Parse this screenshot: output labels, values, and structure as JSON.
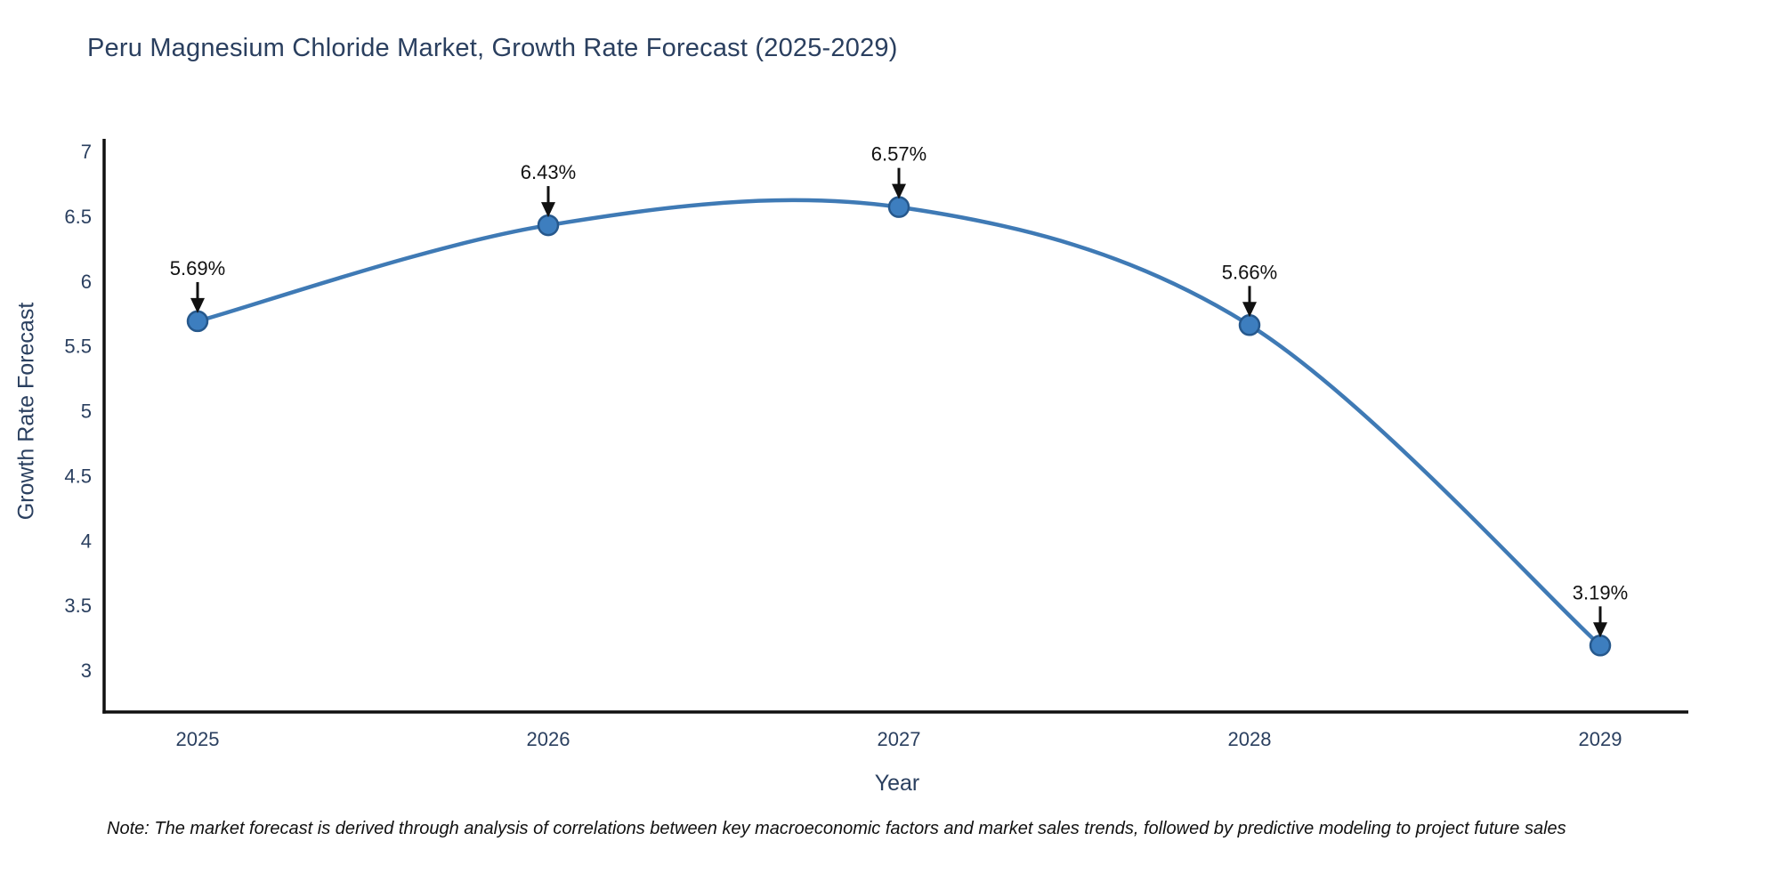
{
  "chart_data": {
    "type": "line",
    "title": "Peru Magnesium Chloride Market, Growth Rate Forecast (2025-2029)",
    "xlabel": "Year",
    "ylabel": "Growth Rate Forecast",
    "categories": [
      "2025",
      "2026",
      "2027",
      "2028",
      "2029"
    ],
    "values": [
      5.69,
      6.43,
      6.57,
      5.66,
      3.19
    ],
    "point_labels": [
      "5.69%",
      "6.43%",
      "6.57%",
      "5.66%",
      "3.19%"
    ],
    "yticks": [
      7,
      6.5,
      6,
      5.5,
      5,
      4.5,
      4,
      3.5,
      3
    ],
    "ylim": [
      2.68,
      7.08
    ],
    "grid": false,
    "legend": "none",
    "line_smoothing": "spline",
    "colors": {
      "line": "#3f7ab5",
      "marker_fill": "#3d7ebf",
      "marker_stroke": "#26588c",
      "axis": "#111111",
      "annotation_text": "#111111",
      "annotation_arrow": "#111111",
      "tick_text": "#2a3f5f",
      "title_text": "#2a3f5f"
    },
    "note": "Note: The market forecast is derived through analysis of correlations between key macroeconomic factors and market sales trends, followed by predictive modeling to project future sales"
  }
}
